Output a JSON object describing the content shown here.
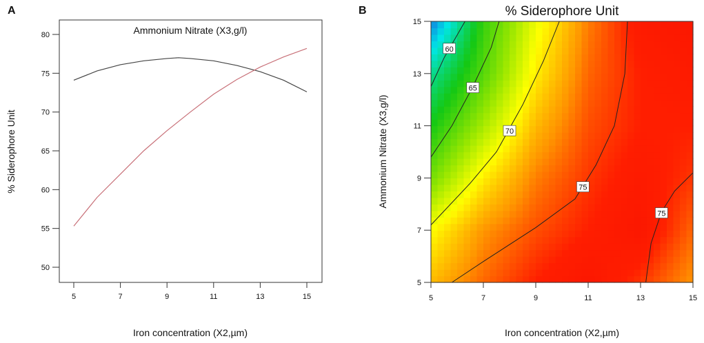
{
  "chart_data": [
    {
      "panel": "A",
      "type": "line",
      "title": "Ammonium Nitrate (X3,g/l)",
      "xlabel": "Iron concentration (X2,µm)",
      "ylabel": "% Siderophore Unit",
      "xlim": [
        4.4,
        15.6
      ],
      "ylim": [
        48.8,
        81.9
      ],
      "xticks": [
        5,
        7,
        9,
        11,
        13,
        15
      ],
      "yticks": [
        50,
        55,
        60,
        65,
        70,
        75,
        80
      ],
      "x": [
        5,
        6,
        7,
        8,
        9,
        9.5,
        10,
        11,
        12,
        13,
        14,
        15
      ],
      "series": [
        {
          "name": "black",
          "color": "#444444",
          "values": [
            74.1,
            75.3,
            76.1,
            76.6,
            76.9,
            77.0,
            76.9,
            76.6,
            76.0,
            75.2,
            74.1,
            72.6
          ]
        },
        {
          "name": "red",
          "color": "#c87078",
          "values": [
            55.3,
            59.0,
            62.0,
            65.0,
            67.6,
            68.8,
            70.0,
            72.3,
            74.2,
            75.8,
            77.1,
            78.2
          ]
        }
      ]
    },
    {
      "panel": "B",
      "type": "heatmap",
      "title": "% Siderophore Unit",
      "xlabel": "Iron concentration (X2,µm)",
      "ylabel": "Ammonium Nitrate (X3,g/l)",
      "xlim": [
        5,
        15
      ],
      "ylim": [
        5,
        15
      ],
      "xticks": [
        5,
        7,
        9,
        11,
        13,
        15
      ],
      "yticks": [
        5,
        7,
        9,
        11,
        13,
        15
      ],
      "grid_x": [
        5,
        7,
        9,
        11,
        13,
        15
      ],
      "grid_y": [
        5,
        7,
        9,
        11,
        13,
        15
      ],
      "z": [
        [
          72,
          74,
          75.5,
          76.5,
          75,
          73
        ],
        [
          70,
          73,
          74.5,
          75.5,
          76.5,
          74
        ],
        [
          66,
          70.5,
          73.5,
          75,
          76,
          75
        ],
        [
          63,
          67.5,
          72,
          74.5,
          75.5,
          75.5
        ],
        [
          60,
          65,
          70.5,
          74,
          75.5,
          76
        ],
        [
          55,
          64,
          69.5,
          73.5,
          76,
          76.5
        ]
      ],
      "contours": [
        {
          "level": "60",
          "points": [
            [
              5,
              12.5
            ],
            [
              5.5,
              13.6
            ],
            [
              6.3,
              15
            ]
          ],
          "label_at": [
            5.7,
            13.95
          ]
        },
        {
          "level": "65",
          "points": [
            [
              5,
              9.8
            ],
            [
              5.8,
              11
            ],
            [
              6.6,
              12.5
            ],
            [
              7.3,
              14
            ],
            [
              7.6,
              15
            ]
          ],
          "label_at": [
            6.6,
            12.45
          ]
        },
        {
          "level": "70",
          "points": [
            [
              5,
              7.2
            ],
            [
              6.5,
              8.8
            ],
            [
              7.5,
              10
            ],
            [
              8.5,
              11.8
            ],
            [
              9.3,
              13.5
            ],
            [
              9.9,
              15
            ]
          ],
          "label_at": [
            8.0,
            10.8
          ]
        },
        {
          "level": "75",
          "points": [
            [
              5.8,
              5
            ],
            [
              7,
              5.8
            ],
            [
              9,
              7.1
            ],
            [
              10.5,
              8.2
            ],
            [
              11.3,
              9.5
            ],
            [
              12,
              11
            ],
            [
              12.4,
              13
            ],
            [
              12.5,
              15
            ]
          ],
          "label_at": [
            10.8,
            8.65
          ]
        },
        {
          "level": "75",
          "points": [
            [
              13.2,
              5
            ],
            [
              13.4,
              6.5
            ],
            [
              13.8,
              7.7
            ],
            [
              14.3,
              8.5
            ],
            [
              15,
              9.2
            ]
          ],
          "label_at": [
            13.8,
            7.65
          ]
        }
      ]
    }
  ],
  "panel_labels": [
    "A",
    "B"
  ]
}
